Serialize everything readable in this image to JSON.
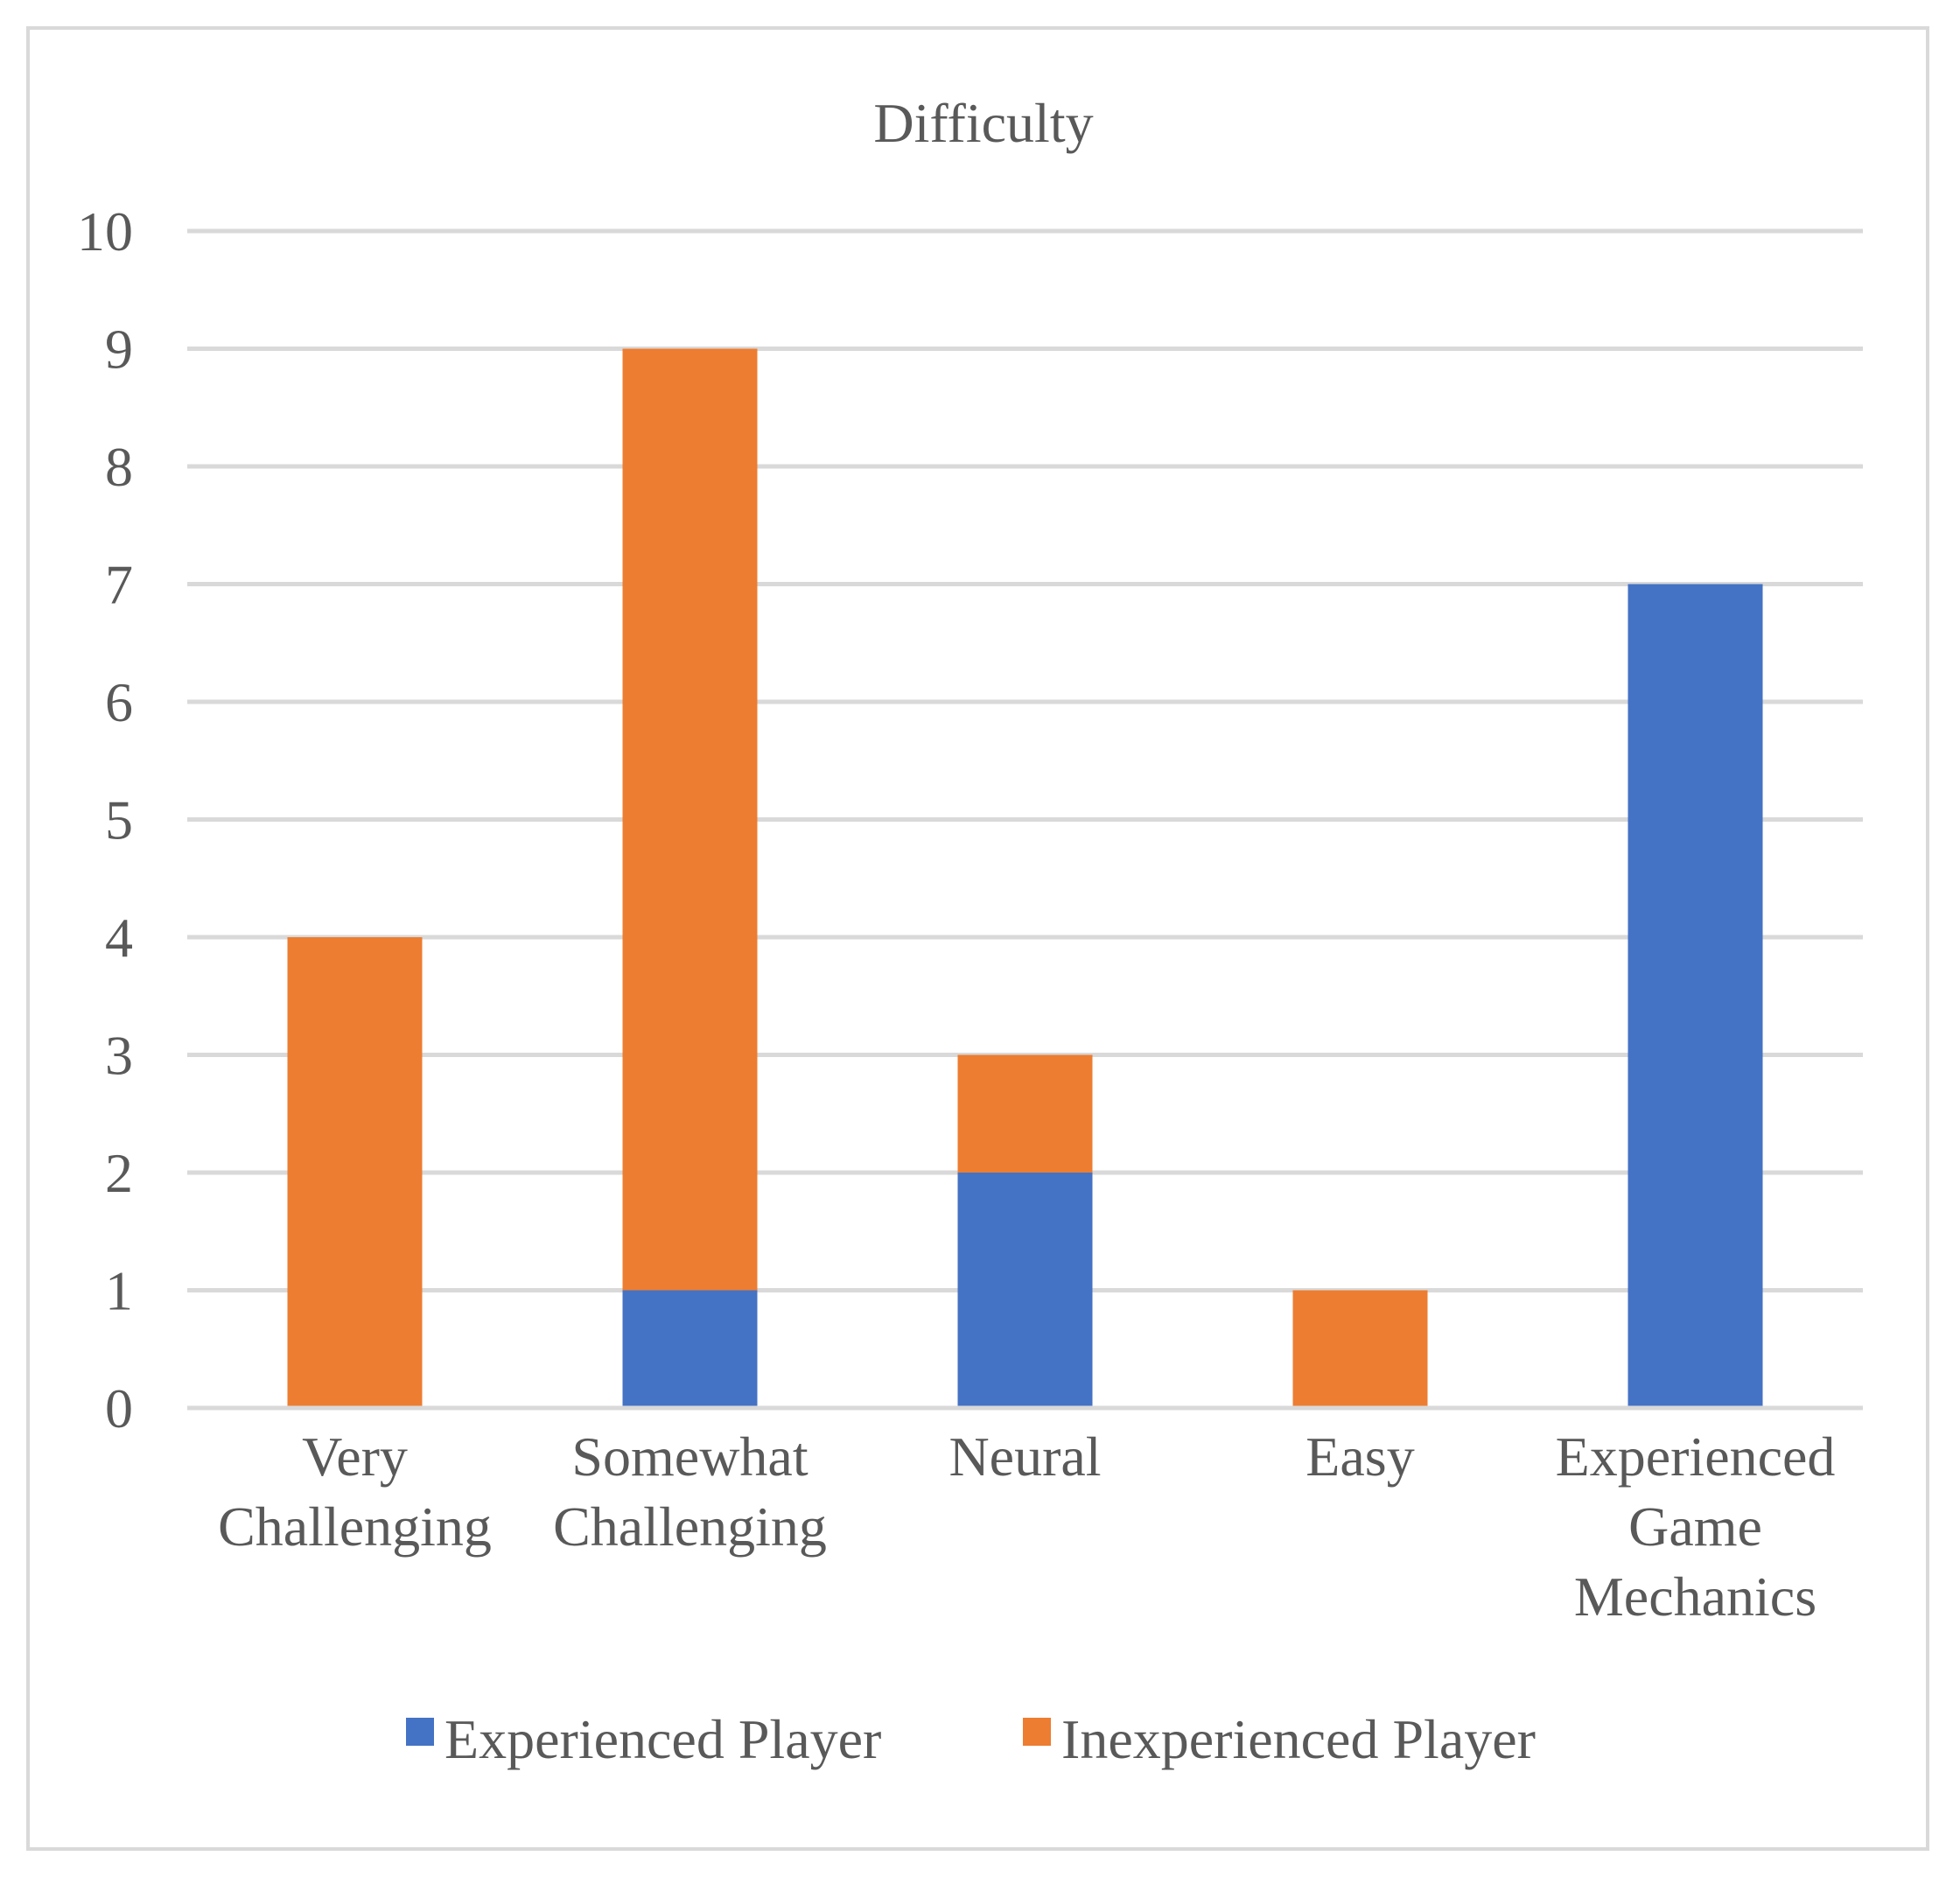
{
  "chart_data": {
    "type": "bar",
    "stacked": true,
    "title": "Difficulty",
    "xlabel": "",
    "ylabel": "",
    "ylim": [
      0,
      10
    ],
    "yticks": [
      "0",
      "1",
      "2",
      "3",
      "4",
      "5",
      "6",
      "7",
      "8",
      "9",
      "10"
    ],
    "grid": true,
    "legend_position": "bottom",
    "categories": [
      [
        "Very",
        "Challenging"
      ],
      [
        "Somewhat",
        "Challenging"
      ],
      [
        "Neural"
      ],
      [
        "Easy"
      ],
      [
        "Experienced",
        "Game",
        "Mechanics"
      ]
    ],
    "series": [
      {
        "name": "Experienced Player",
        "color": "#4472c4",
        "values": [
          0,
          1,
          2,
          0,
          7
        ]
      },
      {
        "name": "Inexperienced Player",
        "color": "#ed7d31",
        "values": [
          4,
          8,
          1,
          1,
          0
        ]
      }
    ]
  }
}
